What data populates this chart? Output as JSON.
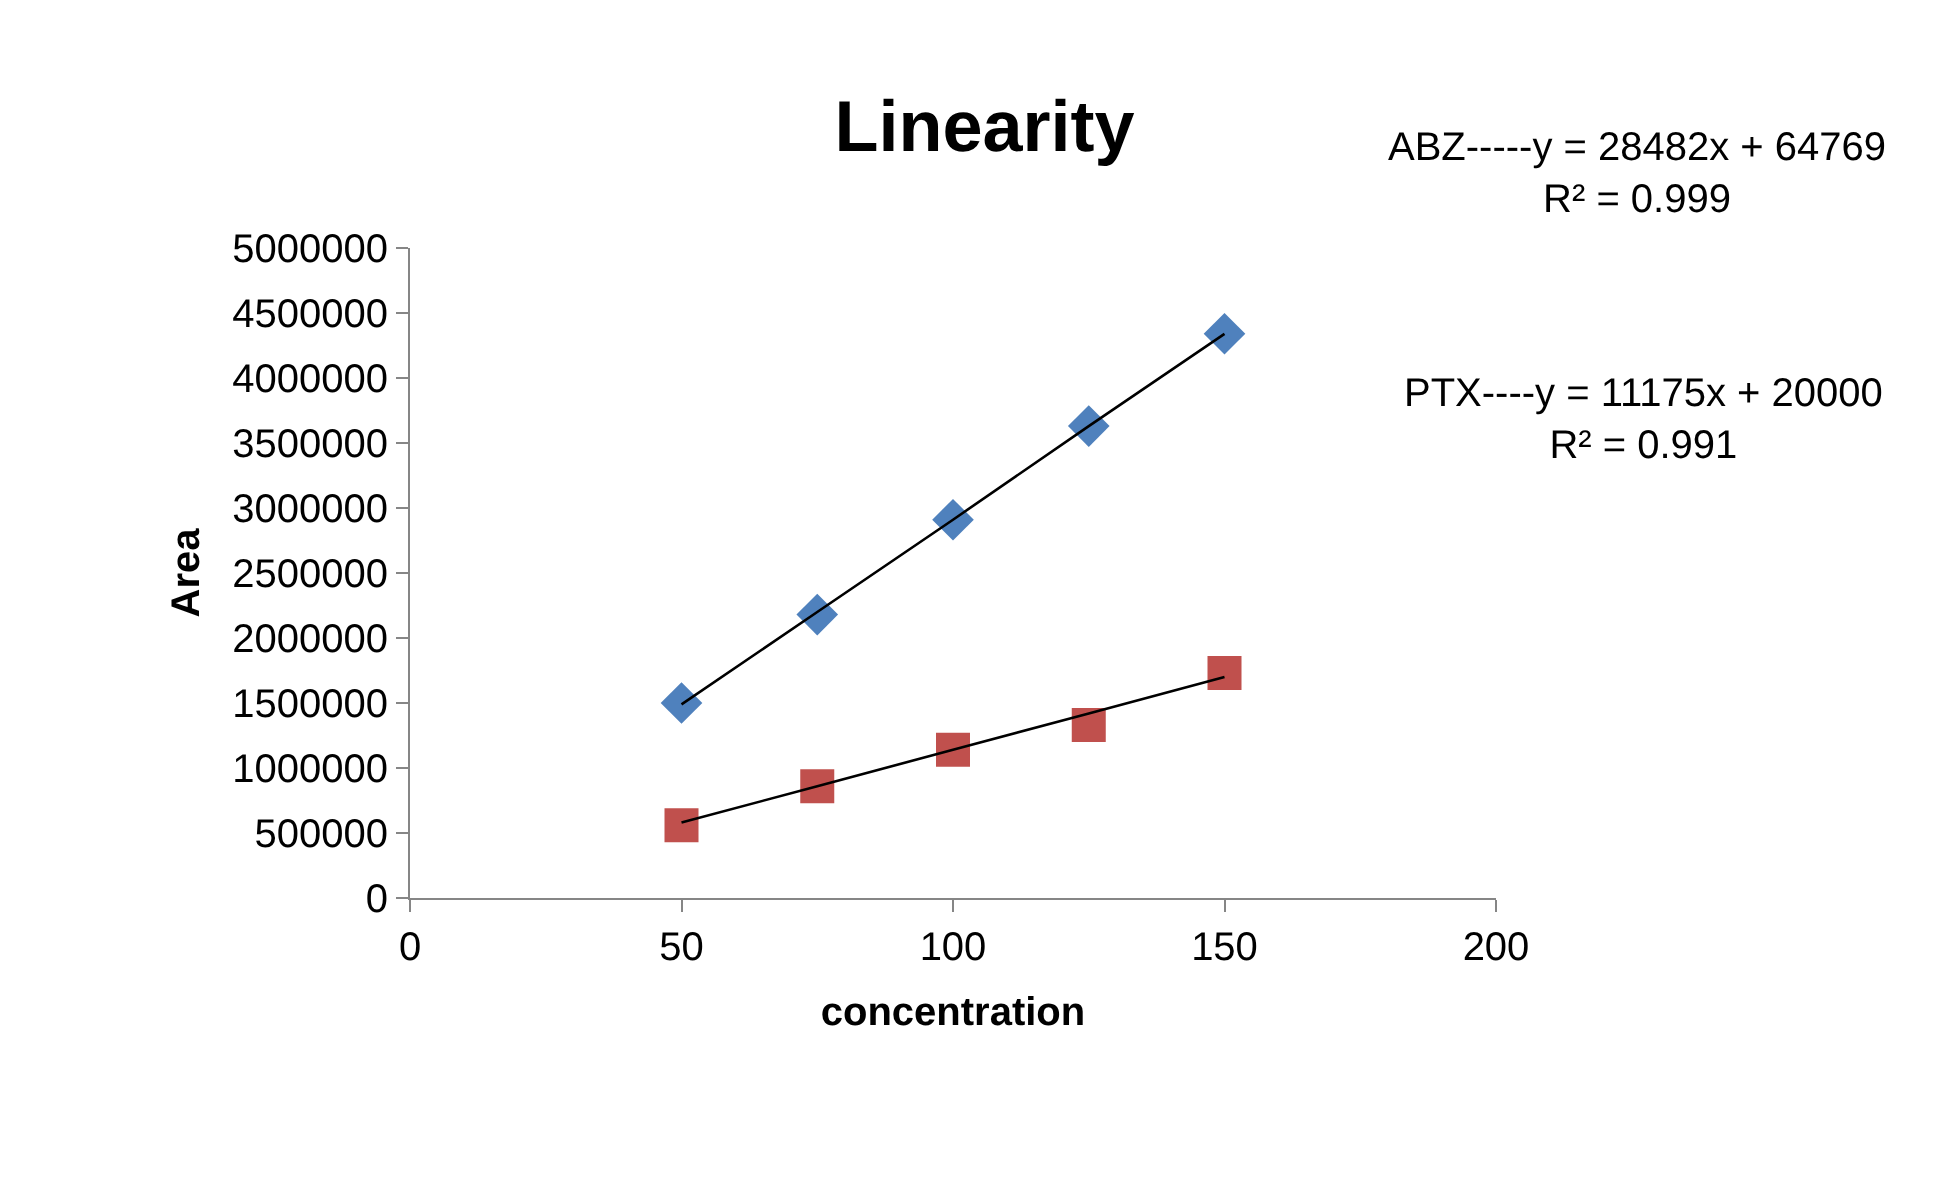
{
  "chart_data": {
    "type": "scatter",
    "title": "Linearity",
    "xlabel": "concentration",
    "ylabel": "Area",
    "x": [
      50,
      75,
      100,
      125,
      150
    ],
    "series": [
      {
        "color": "#4f81bd",
        "marker": "diamond",
        "values": [
          1500000,
          2180000,
          2910000,
          3630000,
          4340000
        ]
      },
      {
        "color": "#c0504d",
        "marker": "square",
        "values": [
          560000,
          860000,
          1140000,
          1330000,
          1730000
        ]
      },
      {
        "type": "line",
        "color": "#000000",
        "marker": "none",
        "values": [
          1490000,
          2200000,
          2910000,
          3630000,
          4340000
        ]
      },
      {
        "type": "line",
        "color": "#000000",
        "marker": "none",
        "values": [
          580000,
          860000,
          1140000,
          1420000,
          1700000
        ]
      }
    ],
    "annotations": [
      "ABZ-----y = 28482x + 64769\nR² = 0.999",
      "PTX----y = 11175x + 20000\nR² = 0.991"
    ],
    "xlim": [
      0,
      200
    ],
    "xticks": [
      0,
      50,
      100,
      150,
      200
    ],
    "ylim": [
      0,
      5000000
    ],
    "yticks": [
      0,
      500000,
      1000000,
      1500000,
      2000000,
      2500000,
      3000000,
      3500000,
      4000000,
      4500000,
      5000000
    ],
    "grid": false,
    "legend": false
  }
}
